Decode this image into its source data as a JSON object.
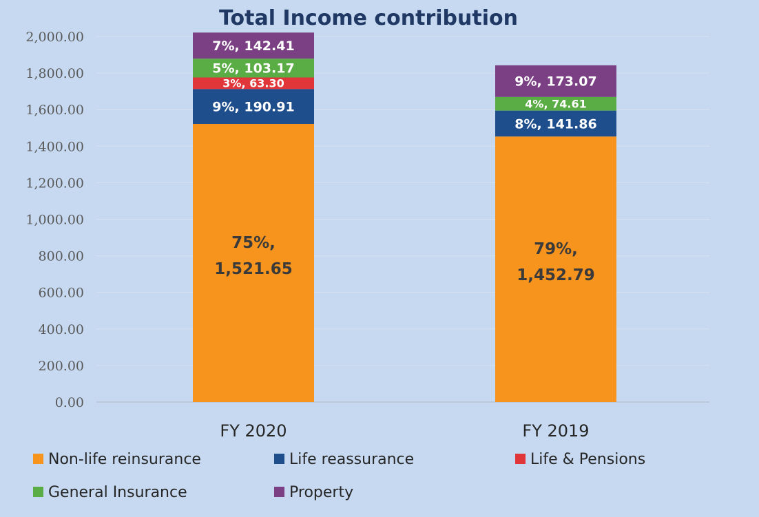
{
  "chart_data": {
    "type": "bar",
    "stacked": true,
    "title": "Total Income contribution",
    "xlabel": "",
    "ylabel": "",
    "ylim": [
      0,
      2000
    ],
    "grid": true,
    "legend_position": "bottom",
    "categories": [
      "FY 2020",
      "FY 2019"
    ],
    "y_ticks": [
      "0.00",
      "200.00",
      "400.00",
      "600.00",
      "800.00",
      "1,000.00",
      "1,200.00",
      "1,400.00",
      "1,600.00",
      "1,800.00",
      "2,000.00"
    ],
    "series": [
      {
        "name": "Non-life reinsurance",
        "color": "#f7941d",
        "label_color": "#3a3a3a",
        "values": [
          1521.65,
          1452.79
        ],
        "labels": [
          [
            "75%,",
            "1,521.65"
          ],
          [
            "79%,",
            "1,452.79"
          ]
        ]
      },
      {
        "name": "Life reassurance",
        "color": "#1f4e8c",
        "label_color": "#ffffff",
        "values": [
          190.91,
          141.86
        ],
        "labels": [
          [
            "9%, 190.91"
          ],
          [
            "8%, 141.86"
          ]
        ]
      },
      {
        "name": "Life & Pensions",
        "color": "#e0363a",
        "label_color": "#ffffff",
        "values": [
          63.3,
          0
        ],
        "labels": [
          [
            "3%, 63.30"
          ],
          []
        ]
      },
      {
        "name": "General Insurance",
        "color": "#5aac44",
        "label_color": "#ffffff",
        "values": [
          103.17,
          74.61
        ],
        "labels": [
          [
            "5%, 103.17"
          ],
          [
            "4%, 74.61"
          ]
        ]
      },
      {
        "name": "Property",
        "color": "#7b3f84",
        "label_color": "#ffffff",
        "values": [
          142.41,
          173.07
        ],
        "labels": [
          [
            "7%, 142.41"
          ],
          [
            "9%, 173.07"
          ]
        ]
      }
    ]
  }
}
